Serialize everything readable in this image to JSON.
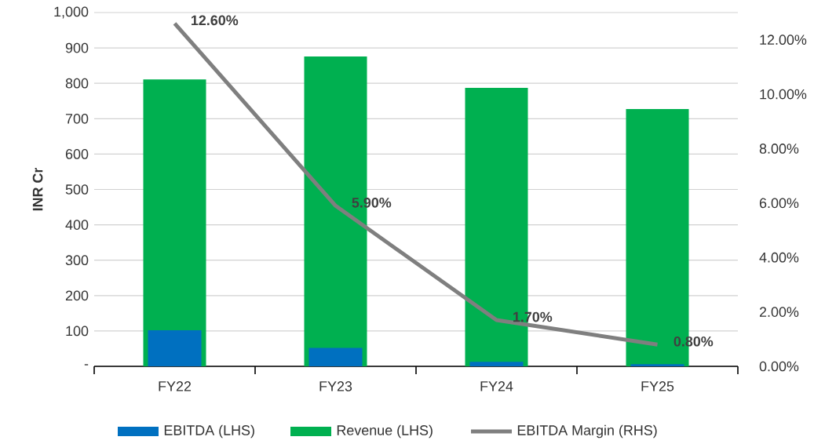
{
  "chart_data": {
    "type": "bar",
    "ylabel": "INR Cr",
    "categories": [
      "FY22",
      "FY23",
      "FY24",
      "FY25"
    ],
    "series": [
      {
        "name": "EBITDA (LHS)",
        "color": "#0070c0",
        "values": [
          102,
          52,
          13,
          6
        ]
      },
      {
        "name": "Revenue (LHS)",
        "color": "#00b050",
        "values": [
          811,
          876,
          787,
          727
        ]
      },
      {
        "name": "EBITDA Margin (RHS)",
        "type": "line",
        "axis": "y2",
        "color": "#7f7f7f",
        "values": [
          12.6,
          5.9,
          1.7,
          0.8
        ],
        "value_labels": [
          "12.60%",
          "5.90%",
          "1.70%",
          "0.80%"
        ]
      }
    ],
    "ylim": [
      0,
      1000
    ],
    "yticks": [
      {
        "value": 0,
        "label": "-"
      },
      100,
      200,
      300,
      400,
      500,
      600,
      700,
      800,
      900,
      {
        "value": 1000,
        "label": "1,000"
      }
    ],
    "y2lim": [
      0,
      13
    ],
    "y2ticks": [
      {
        "value": 0,
        "label": "0.00%"
      },
      {
        "value": 2,
        "label": "2.00%"
      },
      {
        "value": 4,
        "label": "4.00%"
      },
      {
        "value": 6,
        "label": "6.00%"
      },
      {
        "value": 8,
        "label": "8.00%"
      },
      {
        "value": 10,
        "label": "10.00%"
      },
      {
        "value": 12,
        "label": "12.00%"
      }
    ],
    "grid": "y",
    "legend": "bottom"
  }
}
